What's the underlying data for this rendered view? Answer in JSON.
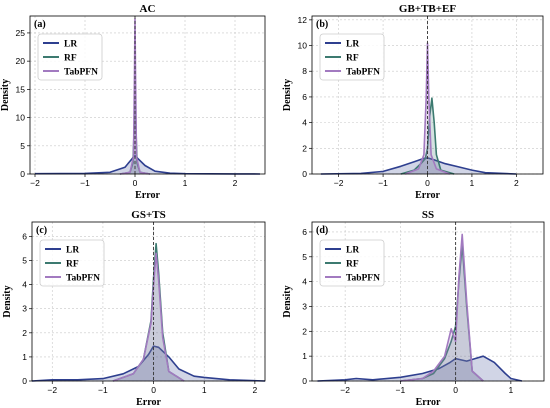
{
  "colors": {
    "LR": "#2e3f8f",
    "RF": "#3c7a70",
    "TabPFN": "#a27ac0",
    "grid": "#c8c8c8",
    "zero_line": "#333333"
  },
  "chart_data": [
    {
      "type": "area",
      "panel_label": "(a)",
      "title": "AC",
      "xlabel": "Error",
      "ylabel": "Density",
      "xlim": [
        -2.1,
        2.6
      ],
      "ylim": [
        0,
        28
      ],
      "xticks": [
        -2,
        -1,
        0,
        1,
        2
      ],
      "xtick_labels": [
        "−2",
        "−1",
        "0",
        "1",
        "2"
      ],
      "yticks": [
        0,
        5,
        10,
        15,
        20,
        25
      ],
      "yticks_labels": [
        "0",
        "5",
        "10",
        "15",
        "20",
        "25"
      ],
      "grid": true,
      "zero_reference_line": true,
      "legend": {
        "position": "top-left",
        "entries": [
          "LR",
          "RF",
          "TabPFN"
        ]
      },
      "series": [
        {
          "name": "LR",
          "x": [
            -2.0,
            -1.0,
            -0.5,
            -0.2,
            -0.05,
            0.0,
            0.05,
            0.2,
            0.4,
            0.7,
            1.0,
            2.0,
            2.5
          ],
          "y": [
            0.05,
            0.1,
            0.3,
            1.2,
            2.8,
            3.3,
            2.8,
            1.5,
            0.5,
            0.15,
            0.05,
            0.02,
            0.0
          ]
        },
        {
          "name": "RF",
          "x": [
            -0.3,
            -0.1,
            -0.04,
            -0.015,
            0.0,
            0.015,
            0.04,
            0.1,
            0.3
          ],
          "y": [
            0.0,
            0.3,
            2.0,
            9.0,
            14.0,
            9.0,
            2.0,
            0.3,
            0.0
          ]
        },
        {
          "name": "TabPFN",
          "x": [
            -0.3,
            -0.1,
            -0.03,
            -0.01,
            0.0,
            0.01,
            0.03,
            0.1,
            0.3
          ],
          "y": [
            0.0,
            0.3,
            3.0,
            18.0,
            27.5,
            18.0,
            3.0,
            0.3,
            0.0
          ]
        }
      ]
    },
    {
      "type": "area",
      "panel_label": "(b)",
      "title": "GB+TB+EF",
      "xlabel": "Error",
      "ylabel": "Density",
      "xlim": [
        -2.6,
        2.6
      ],
      "ylim": [
        0,
        12.3
      ],
      "xticks": [
        -2,
        -1,
        0,
        1,
        2
      ],
      "xtick_labels": [
        "−2",
        "−1",
        "0",
        "1",
        "2"
      ],
      "yticks": [
        0,
        2,
        4,
        6,
        8,
        10,
        12
      ],
      "yticks_labels": [
        "0",
        "2",
        "4",
        "6",
        "8",
        "10",
        "12"
      ],
      "grid": true,
      "zero_reference_line": true,
      "legend": {
        "position": "top-left",
        "entries": [
          "LR",
          "RF",
          "TabPFN"
        ]
      },
      "series": [
        {
          "name": "LR",
          "x": [
            -2.4,
            -1.5,
            -1.0,
            -0.6,
            -0.3,
            -0.1,
            0.0,
            0.15,
            0.4,
            0.7,
            1.0,
            1.3,
            2.0
          ],
          "y": [
            0.0,
            0.05,
            0.2,
            0.6,
            0.95,
            1.2,
            1.25,
            1.1,
            0.8,
            0.55,
            0.3,
            0.1,
            0.0
          ]
        },
        {
          "name": "RF",
          "x": [
            -0.6,
            -0.3,
            -0.15,
            -0.05,
            0.0,
            0.05,
            0.1,
            0.15,
            0.2,
            0.3,
            0.6
          ],
          "y": [
            0.0,
            0.3,
            0.8,
            1.2,
            2.0,
            4.5,
            5.9,
            4.0,
            1.5,
            0.3,
            0.0
          ]
        },
        {
          "name": "TabPFN",
          "x": [
            -0.5,
            -0.2,
            -0.08,
            -0.03,
            0.0,
            0.03,
            0.08,
            0.2,
            0.5
          ],
          "y": [
            0.0,
            0.4,
            1.5,
            6.0,
            10.2,
            6.0,
            1.5,
            0.4,
            0.0
          ]
        }
      ]
    },
    {
      "type": "area",
      "panel_label": "(c)",
      "title": "GS+TS",
      "xlabel": "Error",
      "ylabel": "Density",
      "xlim": [
        -2.4,
        2.2
      ],
      "ylim": [
        0,
        6.6
      ],
      "xticks": [
        -2,
        -1,
        0,
        1,
        2
      ],
      "xtick_labels": [
        "−2",
        "−1",
        "0",
        "1",
        "2"
      ],
      "yticks": [
        0,
        1,
        2,
        3,
        4,
        5,
        6
      ],
      "yticks_labels": [
        "0",
        "1",
        "2",
        "3",
        "4",
        "5",
        "6"
      ],
      "grid": true,
      "zero_reference_line": true,
      "legend": {
        "position": "top-left",
        "entries": [
          "LR",
          "RF",
          "TabPFN"
        ]
      },
      "series": [
        {
          "name": "LR",
          "x": [
            -2.4,
            -2.0,
            -1.5,
            -1.0,
            -0.6,
            -0.3,
            -0.1,
            0.0,
            0.1,
            0.3,
            0.5,
            0.8,
            1.0,
            1.5,
            2.2
          ],
          "y": [
            0.0,
            0.05,
            0.05,
            0.1,
            0.3,
            0.6,
            1.1,
            1.45,
            1.4,
            1.0,
            0.5,
            0.2,
            0.15,
            0.05,
            0.0
          ]
        },
        {
          "name": "RF",
          "x": [
            -0.8,
            -0.4,
            -0.2,
            -0.05,
            0.0,
            0.05,
            0.1,
            0.18,
            0.3,
            0.6
          ],
          "y": [
            0.0,
            0.3,
            0.9,
            2.5,
            4.3,
            5.7,
            4.5,
            2.0,
            0.4,
            0.0
          ]
        },
        {
          "name": "TabPFN",
          "x": [
            -0.8,
            -0.4,
            -0.2,
            -0.05,
            0.0,
            0.05,
            0.1,
            0.18,
            0.3,
            0.6
          ],
          "y": [
            0.0,
            0.3,
            0.9,
            2.4,
            4.0,
            5.3,
            4.2,
            1.8,
            0.4,
            0.0
          ]
        }
      ]
    },
    {
      "type": "area",
      "panel_label": "(d)",
      "title": "SS",
      "xlabel": "Error",
      "ylabel": "Density",
      "xlim": [
        -2.6,
        1.6
      ],
      "ylim": [
        0,
        6.4
      ],
      "xticks": [
        -2,
        -1,
        0,
        1
      ],
      "xtick_labels": [
        "−2",
        "−1",
        "0",
        "1"
      ],
      "yticks": [
        0,
        1,
        2,
        3,
        4,
        5,
        6
      ],
      "yticks_labels": [
        "0",
        "1",
        "2",
        "3",
        "4",
        "5",
        "6"
      ],
      "grid": true,
      "zero_reference_line": true,
      "legend": {
        "position": "top-left",
        "entries": [
          "LR",
          "RF",
          "TabPFN"
        ]
      },
      "series": [
        {
          "name": "LR",
          "x": [
            -2.5,
            -2.0,
            -1.8,
            -1.5,
            -1.0,
            -0.6,
            -0.3,
            -0.1,
            0.0,
            0.1,
            0.2,
            0.35,
            0.5,
            0.7,
            0.9,
            1.0,
            1.2
          ],
          "y": [
            0.0,
            0.05,
            0.1,
            0.05,
            0.15,
            0.3,
            0.5,
            0.75,
            0.9,
            0.85,
            0.8,
            0.9,
            1.0,
            0.75,
            0.3,
            0.1,
            0.0
          ]
        },
        {
          "name": "RF",
          "x": [
            -1.0,
            -0.6,
            -0.4,
            -0.2,
            -0.08,
            0.0,
            0.06,
            0.12,
            0.2,
            0.3,
            0.5
          ],
          "y": [
            0.0,
            0.1,
            0.3,
            0.9,
            1.6,
            2.2,
            4.0,
            5.5,
            3.0,
            0.4,
            0.0
          ]
        },
        {
          "name": "TabPFN",
          "x": [
            -1.0,
            -0.6,
            -0.4,
            -0.2,
            -0.08,
            0.0,
            0.06,
            0.12,
            0.2,
            0.3,
            0.5
          ],
          "y": [
            0.0,
            0.1,
            0.4,
            1.0,
            2.1,
            1.6,
            4.2,
            5.9,
            3.2,
            0.4,
            0.0
          ]
        }
      ]
    }
  ]
}
